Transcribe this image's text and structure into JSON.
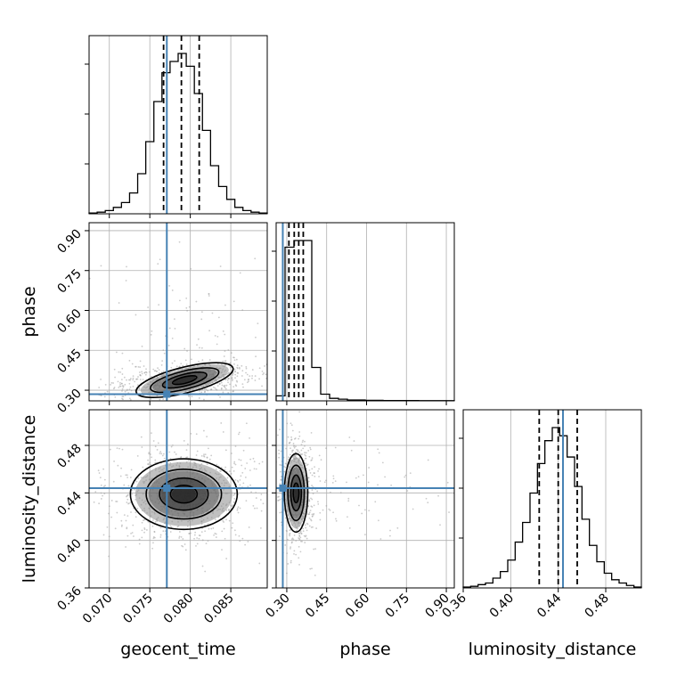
{
  "colors": {
    "truth": "#4682b4",
    "hist": "#000000",
    "grid": "#b0b0b0",
    "points": "#a0a0a0",
    "density_levels": [
      "#8c8c8c",
      "#5a5a5a",
      "#2e2e2e",
      "#111111"
    ]
  },
  "chart_data": {
    "type": "corner",
    "parameters": [
      "geocent_time",
      "phase",
      "luminosity_distance"
    ],
    "truths": {
      "geocent_time": 0.0771,
      "phase": 0.285,
      "luminosity_distance": 0.444
    },
    "ranges": {
      "geocent_time": [
        0.0675,
        0.0895
      ],
      "phase": [
        0.26,
        0.93
      ],
      "luminosity_distance": [
        0.36,
        0.51
      ]
    },
    "ticks": {
      "geocent_time": [
        0.07,
        0.075,
        0.08,
        0.085
      ],
      "phase": [
        0.3,
        0.45,
        0.6,
        0.75,
        0.9
      ],
      "luminosity_distance": [
        0.36,
        0.4,
        0.44,
        0.48
      ]
    },
    "tick_labels": {
      "geocent_time": [
        "0.070",
        "0.075",
        "0.080",
        "0.085"
      ],
      "phase": [
        "0.30",
        "0.45",
        "0.60",
        "0.75",
        "0.90"
      ],
      "luminosity_distance": [
        "0.36",
        "0.40",
        "0.44",
        "0.48"
      ]
    },
    "axis_labels": {
      "geocent_time": "geocent_time",
      "phase": "phase",
      "luminosity_distance": "luminosity_distance"
    },
    "quantiles": {
      "geocent_time": [
        0.0767,
        0.0789,
        0.0811
      ],
      "phase": [
        0.308,
        0.328,
        0.345,
        0.362
      ],
      "luminosity_distance": [
        0.424,
        0.44,
        0.456
      ]
    },
    "histograms": {
      "geocent_time": {
        "edges_min": 0.0675,
        "edges_max": 0.0895,
        "counts": [
          0.5,
          1,
          2,
          4,
          7,
          13,
          25,
          45,
          70,
          88,
          95,
          100,
          92,
          75,
          52,
          30,
          17,
          9,
          4,
          2,
          1,
          0.5
        ]
      },
      "phase": {
        "edges_min": 0.26,
        "edges_max": 0.93,
        "counts": [
          3,
          92,
          96,
          96,
          20,
          4,
          1.5,
          1,
          0.5,
          0.5,
          0.3,
          0.3,
          0.2,
          0.2,
          0.2,
          0.2,
          0.1,
          0.1,
          0.1,
          0.1
        ]
      },
      "luminosity_distance": {
        "edges_min": 0.36,
        "edges_max": 0.51,
        "counts": [
          0.5,
          1,
          2,
          3,
          6,
          10,
          17,
          28,
          40,
          58,
          76,
          90,
          98,
          93,
          80,
          62,
          42,
          26,
          16,
          9,
          5,
          3,
          1.5,
          0.5
        ]
      }
    },
    "joint_blobs": [
      {
        "x": "geocent_time",
        "y": "phase",
        "cx": 0.0793,
        "cy": 0.338,
        "sx": 0.0028,
        "sy": 0.022,
        "rho": 0.35,
        "outlier_frac": 0.12
      },
      {
        "x": "geocent_time",
        "y": "luminosity_distance",
        "cx": 0.0792,
        "cy": 0.439,
        "sx": 0.003,
        "sy": 0.0135,
        "rho": 0.0,
        "outlier_frac": 0.02
      },
      {
        "x": "phase",
        "y": "luminosity_distance",
        "cx": 0.335,
        "cy": 0.44,
        "sx": 0.02,
        "sy": 0.015,
        "rho": 0.0,
        "outlier_frac": 0.1
      }
    ]
  }
}
